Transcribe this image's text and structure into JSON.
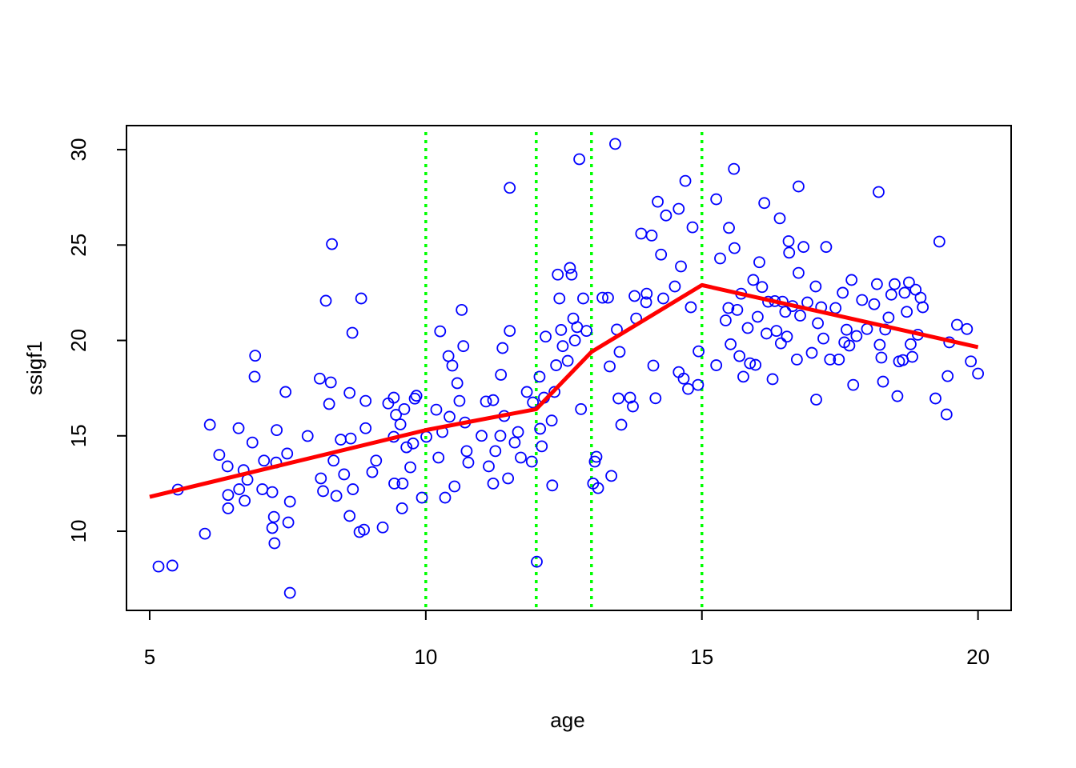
{
  "chart_data": {
    "type": "scatter",
    "xlabel": "age",
    "ylabel": "ssigf1",
    "xlim": [
      4.58,
      20.6
    ],
    "ylim": [
      5.85,
      31.26
    ],
    "xticks": [
      5,
      10,
      15,
      20
    ],
    "yticks": [
      10,
      15,
      20,
      25,
      30
    ],
    "points": {
      "color": "#0000ff",
      "x": [
        5.16,
        5.41,
        5.51,
        6.0,
        6.09,
        6.26,
        6.41,
        6.42,
        6.42,
        6.61,
        6.62,
        6.7,
        6.72,
        6.77,
        6.86,
        6.91,
        6.9,
        7.04,
        7.07,
        7.22,
        7.25,
        7.26,
        7.3,
        7.29,
        7.22,
        7.46,
        7.49,
        7.51,
        7.54,
        7.54,
        7.86,
        8.08,
        8.1,
        8.14,
        8.19,
        8.25,
        8.28,
        8.3,
        8.33,
        8.38,
        8.46,
        8.52,
        8.62,
        8.67,
        8.64,
        8.62,
        8.68,
        8.8,
        8.83,
        8.88,
        8.91,
        8.91,
        9.03,
        9.1,
        9.22,
        9.32,
        9.42,
        9.42,
        9.43,
        9.46,
        9.54,
        9.58,
        9.57,
        9.61,
        9.65,
        9.72,
        9.77,
        9.8,
        9.83,
        9.93,
        10.01,
        10.19,
        10.26,
        10.23,
        10.3,
        10.35,
        10.41,
        10.43,
        10.48,
        10.52,
        10.57,
        10.61,
        10.65,
        10.68,
        10.71,
        10.74,
        10.77,
        11.01,
        11.09,
        11.14,
        11.22,
        11.22,
        11.26,
        11.35,
        11.36,
        11.39,
        11.42,
        11.49,
        11.52,
        11.52,
        11.61,
        11.67,
        11.72,
        11.83,
        11.92,
        11.94,
        12.01,
        12.06,
        12.07,
        12.1,
        12.14,
        12.17,
        12.28,
        12.29,
        12.33,
        12.36,
        12.39,
        12.42,
        12.45,
        12.48,
        12.57,
        12.61,
        12.64,
        12.67,
        12.7,
        12.74,
        12.78,
        12.81,
        12.85,
        12.91,
        13.03,
        13.06,
        13.09,
        13.12,
        13.2,
        13.3,
        13.33,
        13.36,
        13.43,
        13.46,
        13.49,
        13.51,
        13.54,
        13.7,
        13.75,
        13.78,
        13.81,
        13.9,
        13.99,
        14.0,
        14.09,
        14.12,
        14.16,
        14.2,
        14.26,
        14.3,
        14.35,
        14.51,
        14.58,
        14.58,
        14.62,
        14.67,
        14.7,
        14.75,
        14.8,
        14.83,
        14.93,
        14.94,
        15.26,
        15.26,
        15.33,
        15.43,
        15.48,
        15.49,
        15.52,
        15.58,
        15.59,
        15.64,
        15.68,
        15.71,
        15.75,
        15.83,
        15.87,
        15.93,
        15.97,
        16.01,
        16.04,
        16.09,
        16.13,
        16.17,
        16.2,
        16.28,
        16.32,
        16.35,
        16.41,
        16.43,
        16.46,
        16.51,
        16.54,
        16.57,
        16.58,
        16.64,
        16.72,
        16.75,
        16.75,
        16.78,
        16.84,
        16.91,
        16.99,
        17.06,
        17.07,
        17.1,
        17.16,
        17.2,
        17.25,
        17.32,
        17.42,
        17.48,
        17.55,
        17.58,
        17.62,
        17.67,
        17.71,
        17.74,
        17.8,
        17.9,
        17.99,
        18.12,
        18.17,
        18.2,
        18.22,
        18.25,
        18.28,
        18.32,
        18.38,
        18.43,
        18.49,
        18.54,
        18.57,
        18.64,
        18.67,
        18.71,
        18.75,
        18.78,
        18.81,
        18.87,
        18.91,
        18.96,
        19.0,
        19.23,
        19.3,
        19.43,
        19.45,
        19.48,
        19.62,
        19.8,
        19.87,
        20.0
      ],
      "y": [
        8.15,
        8.2,
        12.18,
        9.87,
        15.58,
        14.0,
        13.4,
        11.9,
        11.2,
        15.4,
        12.2,
        13.2,
        11.6,
        12.7,
        14.65,
        19.2,
        18.1,
        12.2,
        13.7,
        12.05,
        10.75,
        9.37,
        15.3,
        13.6,
        10.17,
        17.3,
        14.07,
        10.46,
        6.77,
        11.55,
        14.99,
        18.0,
        12.77,
        12.1,
        22.08,
        16.67,
        17.8,
        25.05,
        13.7,
        11.85,
        14.8,
        12.98,
        17.25,
        20.4,
        14.86,
        10.8,
        12.2,
        9.96,
        22.2,
        10.08,
        16.83,
        15.4,
        13.1,
        13.7,
        10.2,
        16.7,
        17.0,
        14.95,
        12.5,
        16.1,
        15.6,
        12.5,
        11.2,
        16.4,
        14.4,
        13.35,
        14.6,
        16.95,
        17.1,
        11.76,
        14.95,
        16.37,
        20.48,
        13.86,
        15.2,
        11.76,
        19.18,
        16.0,
        18.68,
        12.35,
        17.76,
        16.83,
        21.6,
        19.7,
        15.7,
        14.2,
        13.6,
        15.0,
        16.8,
        13.4,
        16.87,
        12.5,
        14.2,
        15.0,
        18.2,
        19.6,
        16.04,
        12.77,
        28.0,
        20.5,
        14.65,
        15.2,
        13.86,
        17.3,
        13.65,
        16.75,
        8.4,
        18.1,
        15.37,
        14.45,
        17.0,
        20.2,
        15.8,
        12.4,
        17.3,
        18.7,
        23.45,
        22.2,
        20.55,
        19.7,
        18.93,
        23.8,
        23.45,
        21.15,
        20.0,
        20.7,
        29.5,
        16.4,
        22.2,
        20.5,
        12.5,
        13.65,
        13.9,
        12.26,
        22.24,
        22.24,
        18.64,
        12.9,
        30.3,
        20.57,
        16.96,
        19.4,
        15.58,
        17.0,
        16.54,
        22.33,
        21.15,
        25.6,
        22.0,
        22.45,
        25.5,
        18.68,
        16.97,
        27.27,
        24.5,
        22.2,
        26.55,
        22.83,
        26.9,
        18.34,
        23.88,
        18.0,
        28.36,
        17.46,
        21.74,
        25.93,
        17.67,
        19.43,
        27.4,
        18.7,
        24.3,
        21.05,
        21.7,
        25.9,
        19.8,
        28.99,
        24.84,
        21.6,
        19.18,
        22.45,
        18.1,
        20.65,
        18.8,
        23.17,
        18.72,
        21.24,
        24.1,
        22.8,
        27.2,
        20.36,
        22.03,
        17.97,
        22.06,
        20.5,
        26.4,
        19.85,
        22.03,
        21.5,
        20.2,
        25.2,
        24.6,
        21.8,
        19.0,
        28.07,
        23.54,
        21.3,
        24.9,
        21.99,
        19.35,
        22.83,
        16.9,
        20.9,
        21.74,
        20.1,
        24.9,
        19.0,
        21.7,
        19.0,
        22.5,
        19.9,
        20.56,
        19.73,
        23.17,
        17.67,
        20.23,
        22.12,
        20.6,
        21.9,
        22.95,
        27.78,
        19.77,
        19.1,
        17.84,
        20.57,
        21.2,
        22.4,
        22.95,
        17.08,
        18.9,
        18.97,
        22.5,
        21.5,
        23.04,
        19.8,
        19.14,
        22.66,
        20.3,
        22.24,
        21.74,
        16.96,
        25.18,
        16.12,
        18.13,
        19.9,
        20.82,
        20.6,
        18.9,
        18.26
      ]
    },
    "fit": {
      "color": "#ff0000",
      "x": [
        5,
        10,
        12,
        13,
        15,
        20
      ],
      "y": [
        11.8,
        15.3,
        16.4,
        19.4,
        22.9,
        19.65
      ]
    },
    "knots": {
      "color": "#00ff00",
      "values": [
        10,
        12,
        13,
        15
      ]
    }
  }
}
